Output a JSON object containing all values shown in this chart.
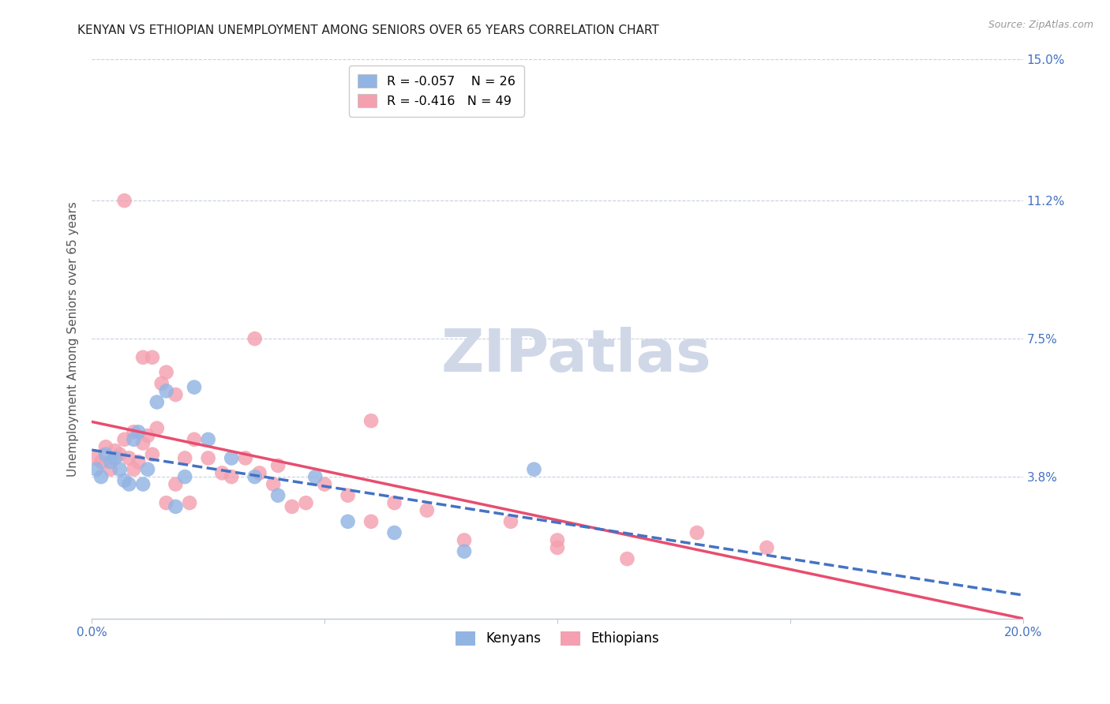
{
  "title": "KENYAN VS ETHIOPIAN UNEMPLOYMENT AMONG SENIORS OVER 65 YEARS CORRELATION CHART",
  "source": "Source: ZipAtlas.com",
  "ylabel": "Unemployment Among Seniors over 65 years",
  "xlim": [
    0.0,
    0.2
  ],
  "ylim": [
    0.0,
    0.15
  ],
  "yticks": [
    0.0,
    0.038,
    0.075,
    0.112,
    0.15
  ],
  "ytick_labels_right": [
    "",
    "3.8%",
    "7.5%",
    "11.2%",
    "15.0%"
  ],
  "xticks": [
    0.0,
    0.05,
    0.1,
    0.15,
    0.2
  ],
  "xtick_labels": [
    "0.0%",
    "",
    "",
    "",
    "20.0%"
  ],
  "kenyan_R": -0.057,
  "kenyan_N": 26,
  "ethiopian_R": -0.416,
  "ethiopian_N": 49,
  "kenyan_color": "#92b4e3",
  "ethiopian_color": "#f4a0b0",
  "kenyan_line_color": "#4472c4",
  "ethiopian_line_color": "#e84d6f",
  "watermark_color": "#d0d8e8",
  "kenyan_x": [
    0.001,
    0.002,
    0.003,
    0.004,
    0.005,
    0.006,
    0.007,
    0.008,
    0.009,
    0.01,
    0.011,
    0.012,
    0.014,
    0.016,
    0.018,
    0.02,
    0.022,
    0.025,
    0.03,
    0.035,
    0.04,
    0.048,
    0.055,
    0.065,
    0.08,
    0.095
  ],
  "kenyan_y": [
    0.04,
    0.038,
    0.044,
    0.042,
    0.043,
    0.04,
    0.037,
    0.036,
    0.048,
    0.05,
    0.036,
    0.04,
    0.058,
    0.061,
    0.03,
    0.038,
    0.062,
    0.048,
    0.043,
    0.038,
    0.033,
    0.038,
    0.026,
    0.023,
    0.018,
    0.04
  ],
  "ethiopian_x": [
    0.001,
    0.002,
    0.003,
    0.004,
    0.005,
    0.006,
    0.007,
    0.008,
    0.009,
    0.01,
    0.011,
    0.012,
    0.013,
    0.014,
    0.015,
    0.016,
    0.018,
    0.02,
    0.022,
    0.025,
    0.028,
    0.03,
    0.033,
    0.036,
    0.039,
    0.04,
    0.043,
    0.046,
    0.05,
    0.055,
    0.035,
    0.06,
    0.065,
    0.072,
    0.08,
    0.09,
    0.1,
    0.115,
    0.13,
    0.145,
    0.007,
    0.009,
    0.011,
    0.013,
    0.016,
    0.018,
    0.021,
    0.06,
    0.1
  ],
  "ethiopian_y": [
    0.043,
    0.042,
    0.046,
    0.04,
    0.045,
    0.044,
    0.048,
    0.043,
    0.04,
    0.042,
    0.047,
    0.049,
    0.044,
    0.051,
    0.063,
    0.066,
    0.06,
    0.043,
    0.048,
    0.043,
    0.039,
    0.038,
    0.043,
    0.039,
    0.036,
    0.041,
    0.03,
    0.031,
    0.036,
    0.033,
    0.075,
    0.026,
    0.031,
    0.029,
    0.021,
    0.026,
    0.019,
    0.016,
    0.023,
    0.019,
    0.112,
    0.05,
    0.07,
    0.07,
    0.031,
    0.036,
    0.031,
    0.053,
    0.021
  ]
}
